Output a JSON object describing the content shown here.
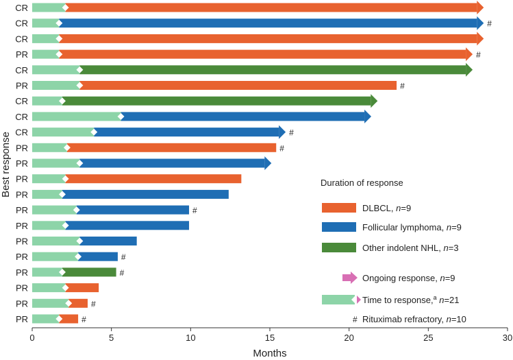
{
  "chart_data": {
    "type": "bar",
    "subtype": "swimmer-horizontal",
    "xlabel": "Months",
    "ylabel": "Best response",
    "xlim": [
      0,
      30
    ],
    "xticks": [
      0,
      5,
      10,
      15,
      20,
      25,
      30
    ],
    "grid": false,
    "colors": {
      "DLBCL": "#e8622f",
      "Follicular lymphoma": "#1f6eb4",
      "Other indolent NHL": "#4a8a3a",
      "time_to_response": "#8dd4a8",
      "ongoing": "#d86fb4",
      "marker": "#ffffff"
    },
    "bars": [
      {
        "response": "CR",
        "type": "DLBCL",
        "ttr": 2.1,
        "end": 28.5,
        "ongoing": true,
        "rituximab_refractory": false
      },
      {
        "response": "CR",
        "type": "Follicular lymphoma",
        "ttr": 1.7,
        "end": 28.5,
        "ongoing": true,
        "rituximab_refractory": true
      },
      {
        "response": "CR",
        "type": "DLBCL",
        "ttr": 1.7,
        "end": 28.5,
        "ongoing": true,
        "rituximab_refractory": false
      },
      {
        "response": "PR",
        "type": "DLBCL",
        "ttr": 1.7,
        "end": 27.8,
        "ongoing": true,
        "rituximab_refractory": true
      },
      {
        "response": "CR",
        "type": "Other indolent NHL",
        "ttr": 3.0,
        "end": 27.8,
        "ongoing": true,
        "rituximab_refractory": false
      },
      {
        "response": "PR",
        "type": "DLBCL",
        "ttr": 3.0,
        "end": 23.0,
        "ongoing": false,
        "rituximab_refractory": true
      },
      {
        "response": "CR",
        "type": "Other indolent NHL",
        "ttr": 1.9,
        "end": 21.8,
        "ongoing": true,
        "rituximab_refractory": false
      },
      {
        "response": "CR",
        "type": "Follicular lymphoma",
        "ttr": 5.6,
        "end": 21.4,
        "ongoing": true,
        "rituximab_refractory": false
      },
      {
        "response": "CR",
        "type": "Follicular lymphoma",
        "ttr": 3.9,
        "end": 16.0,
        "ongoing": true,
        "rituximab_refractory": true
      },
      {
        "response": "PR",
        "type": "DLBCL",
        "ttr": 2.2,
        "end": 15.4,
        "ongoing": false,
        "rituximab_refractory": true
      },
      {
        "response": "PR",
        "type": "Follicular lymphoma",
        "ttr": 3.0,
        "end": 15.1,
        "ongoing": true,
        "rituximab_refractory": false
      },
      {
        "response": "PR",
        "type": "DLBCL",
        "ttr": 2.1,
        "end": 13.2,
        "ongoing": false,
        "rituximab_refractory": false
      },
      {
        "response": "PR",
        "type": "Follicular lymphoma",
        "ttr": 1.9,
        "end": 12.4,
        "ongoing": false,
        "rituximab_refractory": false
      },
      {
        "response": "PR",
        "type": "Follicular lymphoma",
        "ttr": 2.8,
        "end": 9.9,
        "ongoing": false,
        "rituximab_refractory": true
      },
      {
        "response": "PR",
        "type": "Follicular lymphoma",
        "ttr": 2.1,
        "end": 9.9,
        "ongoing": false,
        "rituximab_refractory": false
      },
      {
        "response": "PR",
        "type": "Follicular lymphoma",
        "ttr": 3.0,
        "end": 6.6,
        "ongoing": false,
        "rituximab_refractory": false
      },
      {
        "response": "PR",
        "type": "Follicular lymphoma",
        "ttr": 2.9,
        "end": 5.4,
        "ongoing": false,
        "rituximab_refractory": true
      },
      {
        "response": "PR",
        "type": "Other indolent NHL",
        "ttr": 1.9,
        "end": 5.3,
        "ongoing": false,
        "rituximab_refractory": true
      },
      {
        "response": "PR",
        "type": "DLBCL",
        "ttr": 2.1,
        "end": 4.2,
        "ongoing": false,
        "rituximab_refractory": false
      },
      {
        "response": "PR",
        "type": "DLBCL",
        "ttr": 2.3,
        "end": 3.5,
        "ongoing": false,
        "rituximab_refractory": true
      },
      {
        "response": "PR",
        "type": "DLBCL",
        "ttr": 1.7,
        "end": 2.9,
        "ongoing": false,
        "rituximab_refractory": true
      }
    ],
    "legend": {
      "title": "Duration of response",
      "placement": "lower-right",
      "items": [
        {
          "key": "DLBCL",
          "label": "DLBCL",
          "n": "n=9",
          "kind": "bar"
        },
        {
          "key": "Follicular lymphoma",
          "label": "Follicular lymphoma",
          "n": "n=9",
          "kind": "bar"
        },
        {
          "key": "Other indolent NHL",
          "label": "Other indolent NHL",
          "n": "n=3",
          "kind": "bar"
        },
        {
          "key": "ongoing",
          "label": "Ongoing response",
          "n": "n=9",
          "kind": "arrow"
        },
        {
          "key": "time_to_response",
          "label": "Time to response,",
          "sup": "a",
          "n": "n=21",
          "kind": "ttr"
        },
        {
          "key": "rituximab",
          "label": "Rituximab refractory",
          "n": "n=10",
          "kind": "hash"
        }
      ]
    },
    "refractory_symbol": "#"
  }
}
